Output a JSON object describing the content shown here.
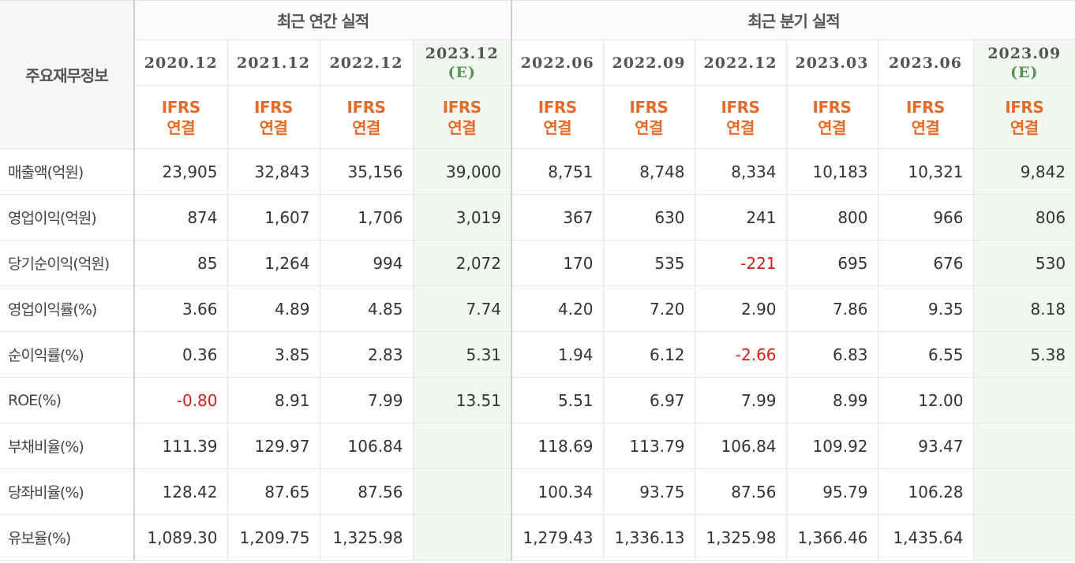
{
  "table": {
    "corner_label": "주요재무정보",
    "groups": {
      "annual": "최근 연간 실적",
      "quarterly": "최근 분기 실적"
    },
    "columns": [
      {
        "period": "2020.12",
        "estimate": "",
        "basis": [
          "IFRS",
          "연결"
        ],
        "group": "annual"
      },
      {
        "period": "2021.12",
        "estimate": "",
        "basis": [
          "IFRS",
          "연결"
        ],
        "group": "annual"
      },
      {
        "period": "2022.12",
        "estimate": "",
        "basis": [
          "IFRS",
          "연결"
        ],
        "group": "annual"
      },
      {
        "period": "2023.12",
        "estimate": "(E)",
        "basis": [
          "IFRS",
          "연결"
        ],
        "group": "annual"
      },
      {
        "period": "2022.06",
        "estimate": "",
        "basis": [
          "IFRS",
          "연결"
        ],
        "group": "quarterly"
      },
      {
        "period": "2022.09",
        "estimate": "",
        "basis": [
          "IFRS",
          "연결"
        ],
        "group": "quarterly"
      },
      {
        "period": "2022.12",
        "estimate": "",
        "basis": [
          "IFRS",
          "연결"
        ],
        "group": "quarterly"
      },
      {
        "period": "2023.03",
        "estimate": "",
        "basis": [
          "IFRS",
          "연결"
        ],
        "group": "quarterly"
      },
      {
        "period": "2023.06",
        "estimate": "",
        "basis": [
          "IFRS",
          "연결"
        ],
        "group": "quarterly"
      },
      {
        "period": "2023.09",
        "estimate": "(E)",
        "basis": [
          "IFRS",
          "연결"
        ],
        "group": "quarterly"
      }
    ],
    "rows": [
      {
        "label": "매출액(억원)",
        "values": [
          "23,905",
          "32,843",
          "35,156",
          "39,000",
          "8,751",
          "8,748",
          "8,334",
          "10,183",
          "10,321",
          "9,842"
        ]
      },
      {
        "label": "영업이익(억원)",
        "values": [
          "874",
          "1,607",
          "1,706",
          "3,019",
          "367",
          "630",
          "241",
          "800",
          "966",
          "806"
        ]
      },
      {
        "label": "당기순이익(억원)",
        "values": [
          "85",
          "1,264",
          "994",
          "2,072",
          "170",
          "535",
          "-221",
          "695",
          "676",
          "530"
        ]
      },
      {
        "label": "영업이익률(%)",
        "values": [
          "3.66",
          "4.89",
          "4.85",
          "7.74",
          "4.20",
          "7.20",
          "2.90",
          "7.86",
          "9.35",
          "8.18"
        ]
      },
      {
        "label": "순이익률(%)",
        "values": [
          "0.36",
          "3.85",
          "2.83",
          "5.31",
          "1.94",
          "6.12",
          "-2.66",
          "6.83",
          "6.55",
          "5.38"
        ]
      },
      {
        "label": "ROE(%)",
        "values": [
          "-0.80",
          "8.91",
          "7.99",
          "13.51",
          "5.51",
          "6.97",
          "7.99",
          "8.99",
          "12.00",
          ""
        ]
      },
      {
        "label": "부채비율(%)",
        "values": [
          "111.39",
          "129.97",
          "106.84",
          "",
          "118.69",
          "113.79",
          "106.84",
          "109.92",
          "93.47",
          ""
        ]
      },
      {
        "label": "당좌비율(%)",
        "values": [
          "128.42",
          "87.65",
          "87.56",
          "",
          "100.34",
          "93.75",
          "87.56",
          "95.79",
          "106.28",
          ""
        ]
      },
      {
        "label": "유보율(%)",
        "values": [
          "1,089.30",
          "1,209.75",
          "1,325.98",
          "",
          "1,279.43",
          "1,336.13",
          "1,325.98",
          "1,366.46",
          "1,435.64",
          ""
        ]
      }
    ],
    "colors": {
      "negative": "#d6201a",
      "basis_label": "#e56b2b",
      "estimate_mark": "#5a8f5a",
      "estimate_bg": "#f2f8f1"
    }
  }
}
